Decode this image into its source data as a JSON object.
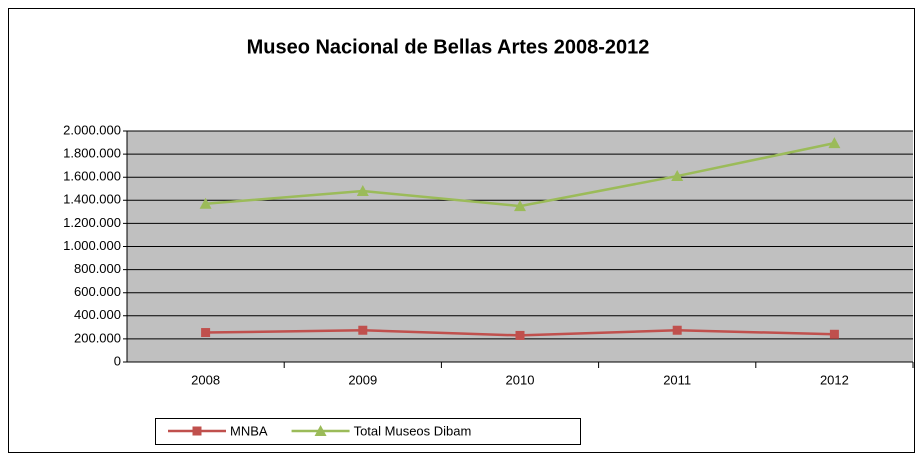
{
  "chart_data": {
    "type": "line",
    "title": "Museo Nacional de Bellas Artes 2008-2012",
    "categories": [
      "2008",
      "2009",
      "2010",
      "2011",
      "2012"
    ],
    "series": [
      {
        "name": "MNBA",
        "color": "#c0504d",
        "marker": "square",
        "values": [
          255000,
          275000,
          230000,
          275000,
          240000
        ]
      },
      {
        "name": "Total Museos Dibam",
        "color": "#9bbb59",
        "marker": "triangle",
        "values": [
          1370000,
          1480000,
          1350000,
          1610000,
          1895000
        ]
      }
    ],
    "ylim": [
      0,
      2000000
    ],
    "yticks": [
      0,
      {
        "value": 200000,
        "label": "200.000"
      },
      {
        "value": 400000,
        "label": "400.000"
      },
      {
        "value": 600000,
        "label": "600.000"
      },
      {
        "value": 800000,
        "label": "800.000"
      },
      {
        "value": 1000000,
        "label": "1.000.000"
      },
      {
        "value": 1200000,
        "label": "1.200.000"
      },
      {
        "value": 1400000,
        "label": "1.400.000"
      },
      {
        "value": 1600000,
        "label": "1.600.000"
      },
      {
        "value": 1800000,
        "label": "1.800.000"
      },
      {
        "value": 2000000,
        "label": "2.000.000"
      }
    ],
    "grid": true,
    "legend": "bottom",
    "plot_background": "#c0c0c0"
  }
}
